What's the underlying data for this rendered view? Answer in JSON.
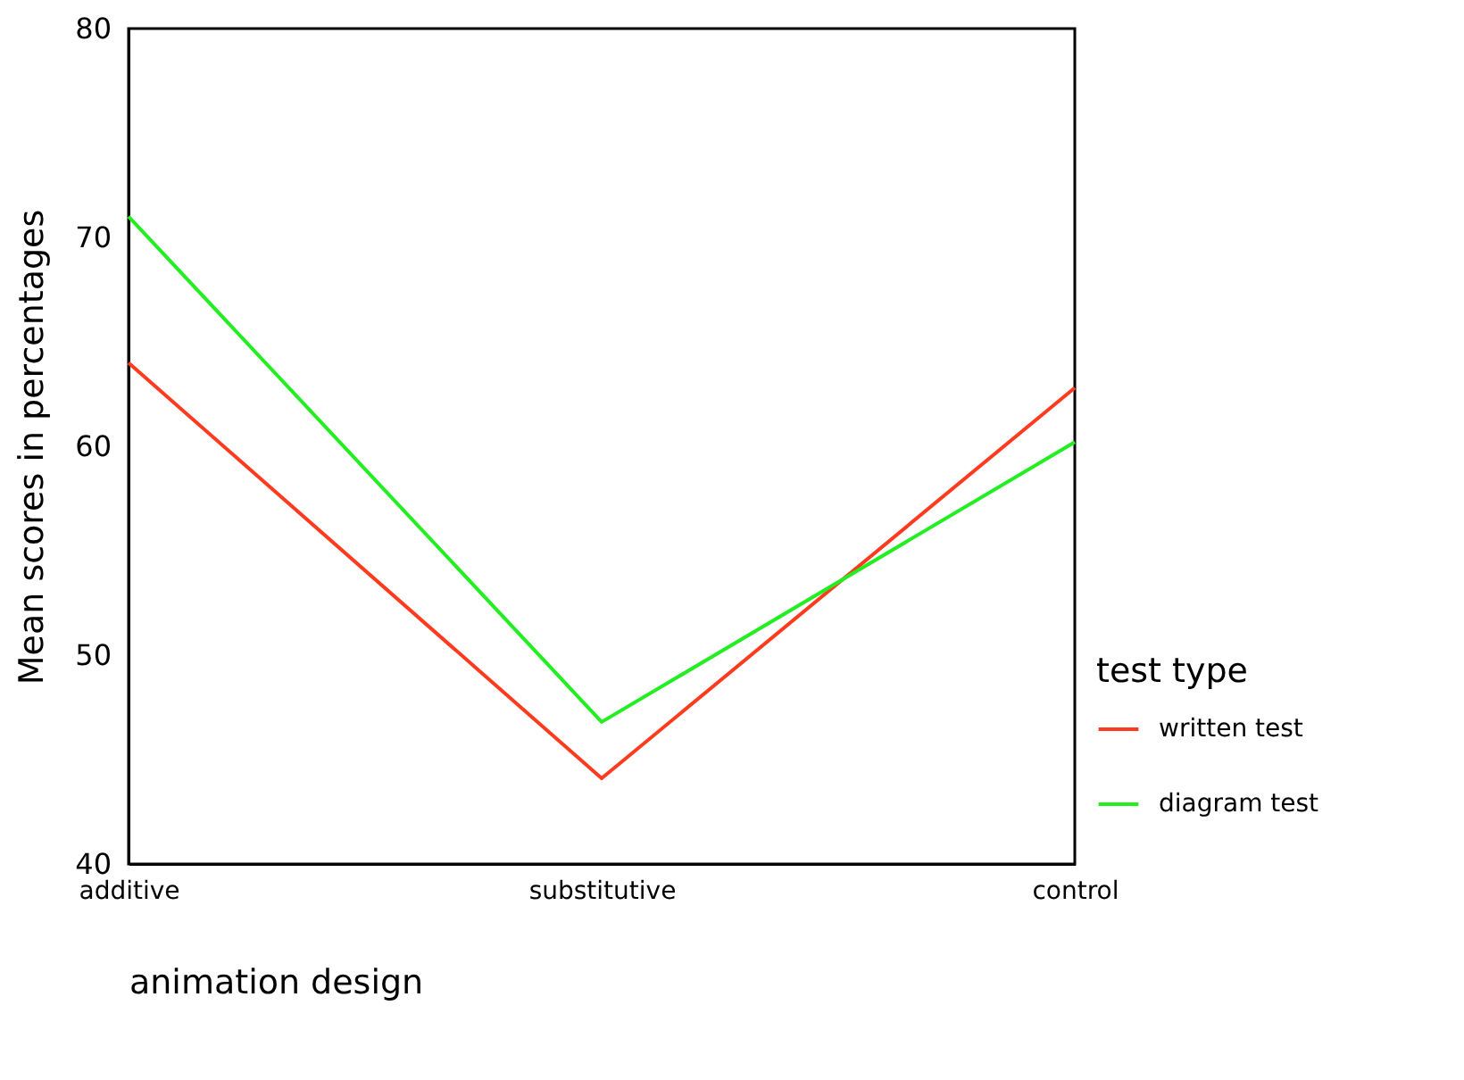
{
  "chart_data": {
    "type": "line",
    "xlabel": "animation design",
    "ylabel": "Mean scores in percentages",
    "legend_title": "test type",
    "categories": [
      "additive",
      "substitutive",
      "control"
    ],
    "series": [
      {
        "name": "written test",
        "color": "#ff3b1f",
        "values": [
          64,
          44.1,
          62.8
        ]
      },
      {
        "name": "diagram test",
        "color": "#22ee22",
        "values": [
          71,
          46.8,
          60.2
        ]
      }
    ],
    "ylim": [
      40,
      80
    ],
    "yticks": [
      40,
      50,
      60,
      70,
      80
    ],
    "grid": false,
    "legend": "right",
    "marker": "none",
    "line_style": "solid"
  }
}
